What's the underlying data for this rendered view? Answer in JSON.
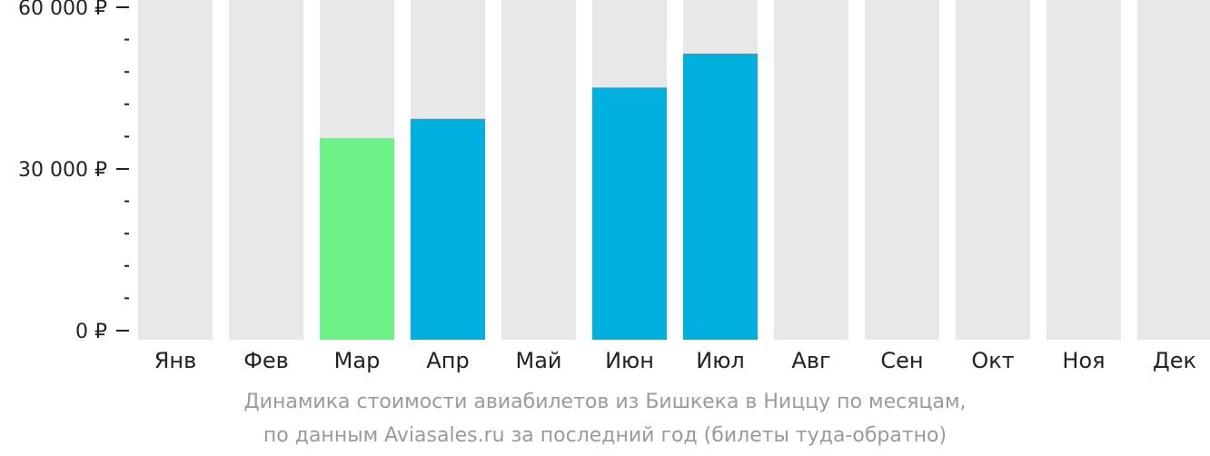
{
  "chart_data": {
    "type": "bar",
    "categories": [
      "Янв",
      "Фев",
      "Мар",
      "Апр",
      "Май",
      "Июн",
      "Июл",
      "Авг",
      "Сен",
      "Окт",
      "Ноя",
      "Дек"
    ],
    "values": [
      null,
      null,
      35700,
      39300,
      null,
      45100,
      51400,
      null,
      null,
      null,
      null,
      null
    ],
    "highlight": "Мар",
    "ylim": [
      0,
      60000
    ],
    "yticks": [
      {
        "value": 0,
        "label": "0 ₽"
      },
      {
        "value": 30000,
        "label": "30 000 ₽"
      },
      {
        "value": 60000,
        "label": "60 000 ₽"
      }
    ],
    "minor_tick_step": 6000,
    "colors": {
      "background_bar": "#e8e8e8",
      "bar": "#00b0de",
      "highlight_bar": "#6df287",
      "axis": "#222222"
    },
    "grid": false,
    "legend": "none"
  },
  "caption": {
    "line1": "Динамика стоимости авиабилетов из Бишкека в Ниццу по месяцам,",
    "line2": "по данным Aviasales.ru за последний год (билеты туда-обратно)"
  }
}
